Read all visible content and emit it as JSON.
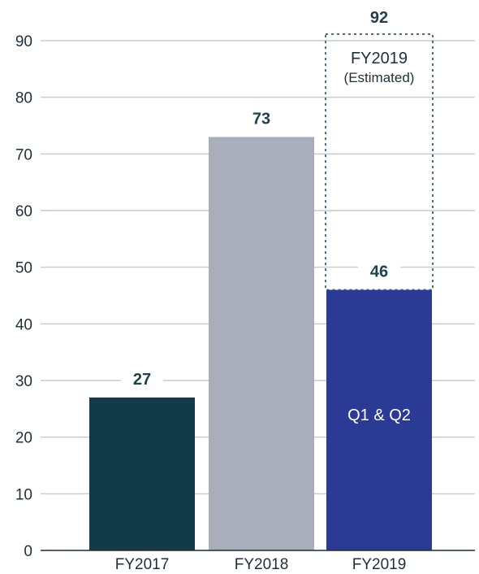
{
  "chart_data": {
    "type": "bar",
    "categories": [
      "FY2017",
      "FY2018",
      "FY2019"
    ],
    "values": [
      27,
      73,
      46
    ],
    "data_labels": [
      "27",
      "73",
      "46"
    ],
    "ylim": [
      0,
      90
    ],
    "yticks": [
      0,
      10,
      20,
      30,
      40,
      50,
      60,
      70,
      80,
      90
    ],
    "grid": true,
    "colors": [
      "#123a47",
      "#a9aeba",
      "#2b3a94"
    ],
    "estimate": {
      "category": "FY2019",
      "value": 92,
      "value_label": "92",
      "label_line1": "FY2019",
      "label_line2": "(Estimated)",
      "border_color": "#4d6c86"
    },
    "in_bar_label": {
      "category": "FY2019",
      "text": "Q1 & Q2"
    }
  }
}
